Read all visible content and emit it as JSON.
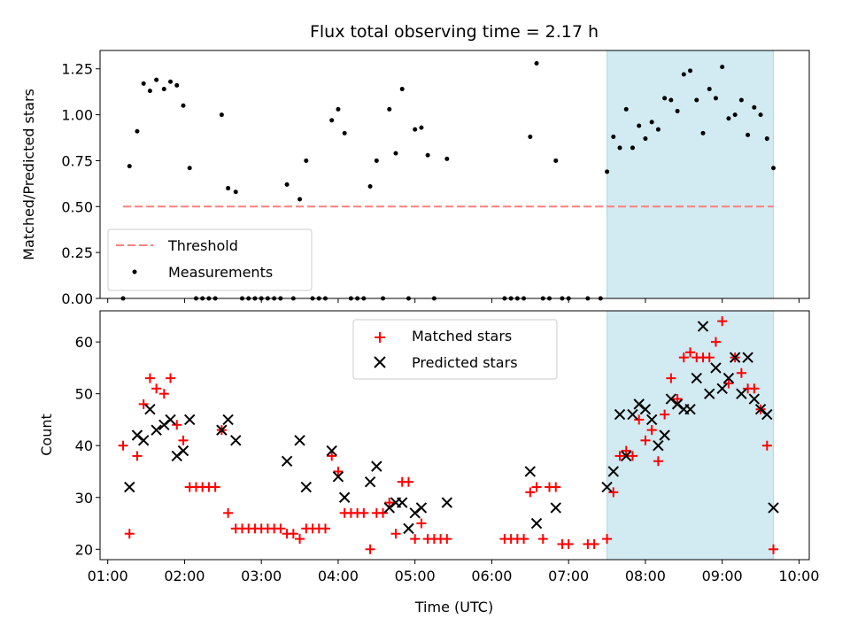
{
  "chart_data": [
    {
      "type": "scatter",
      "title": "Flux total observing time = 2.17 h",
      "xlabel": "",
      "ylabel": "Matched/Predicted stars",
      "xlim": [
        "00:54",
        "10:08"
      ],
      "ylim": [
        0,
        1.35
      ],
      "yticks": [
        "0.00",
        "0.25",
        "0.50",
        "0.75",
        "1.00",
        "1.25"
      ],
      "shaded_region": {
        "x": [
          "07:30",
          "09:40"
        ],
        "color": "#add8e6"
      },
      "threshold": {
        "name": "Threshold",
        "y": 0.5,
        "x": [
          "01:12",
          "09:40"
        ],
        "color": "#ff7f7f",
        "style": "dashed"
      },
      "legend": {
        "position": "lower-left",
        "entries": [
          "Threshold",
          "Measurements"
        ]
      },
      "series": [
        {
          "name": "Measurements",
          "color": "#000000",
          "points": [
            [
              "01:12",
              0
            ],
            [
              "01:17",
              0.72
            ],
            [
              "01:23",
              0.91
            ],
            [
              "01:28",
              1.17
            ],
            [
              "01:33",
              1.13
            ],
            [
              "01:38",
              1.19
            ],
            [
              "01:44",
              1.14
            ],
            [
              "01:49",
              1.18
            ],
            [
              "01:54",
              1.16
            ],
            [
              "01:59",
              1.05
            ],
            [
              "02:04",
              0.71
            ],
            [
              "02:09",
              0
            ],
            [
              "02:14",
              0
            ],
            [
              "02:19",
              0
            ],
            [
              "02:24",
              0
            ],
            [
              "02:29",
              1.0
            ],
            [
              "02:34",
              0.6
            ],
            [
              "02:40",
              0.58
            ],
            [
              "02:45",
              0
            ],
            [
              "02:50",
              0
            ],
            [
              "02:55",
              0
            ],
            [
              "03:00",
              0
            ],
            [
              "03:05",
              0
            ],
            [
              "03:10",
              0
            ],
            [
              "03:15",
              0
            ],
            [
              "03:20",
              0.62
            ],
            [
              "03:25",
              0
            ],
            [
              "03:30",
              0.54
            ],
            [
              "03:35",
              0.75
            ],
            [
              "03:40",
              0
            ],
            [
              "03:45",
              0
            ],
            [
              "03:50",
              0
            ],
            [
              "03:55",
              0.97
            ],
            [
              "04:00",
              1.03
            ],
            [
              "04:05",
              0.9
            ],
            [
              "04:10",
              0
            ],
            [
              "04:15",
              0
            ],
            [
              "04:20",
              0
            ],
            [
              "04:25",
              0.61
            ],
            [
              "04:30",
              0.75
            ],
            [
              "04:35",
              0
            ],
            [
              "04:40",
              1.03
            ],
            [
              "04:45",
              0.79
            ],
            [
              "04:50",
              1.14
            ],
            [
              "04:55",
              0
            ],
            [
              "05:00",
              0.92
            ],
            [
              "05:05",
              0.93
            ],
            [
              "05:10",
              0.78
            ],
            [
              "05:15",
              0
            ],
            [
              "05:25",
              0.76
            ],
            [
              "06:10",
              0
            ],
            [
              "06:15",
              0
            ],
            [
              "06:20",
              0
            ],
            [
              "06:25",
              0
            ],
            [
              "06:30",
              0.88
            ],
            [
              "06:35",
              1.28
            ],
            [
              "06:40",
              0
            ],
            [
              "06:45",
              0
            ],
            [
              "06:50",
              0.75
            ],
            [
              "06:55",
              0
            ],
            [
              "07:00",
              0
            ],
            [
              "07:15",
              0
            ],
            [
              "07:25",
              0
            ],
            [
              "07:30",
              0.69
            ],
            [
              "07:35",
              0.88
            ],
            [
              "07:40",
              0.82
            ],
            [
              "07:45",
              1.03
            ],
            [
              "07:50",
              0.82
            ],
            [
              "07:55",
              0.94
            ],
            [
              "08:00",
              0.87
            ],
            [
              "08:05",
              0.96
            ],
            [
              "08:10",
              0.92
            ],
            [
              "08:15",
              1.09
            ],
            [
              "08:20",
              1.08
            ],
            [
              "08:25",
              1.02
            ],
            [
              "08:30",
              1.22
            ],
            [
              "08:35",
              1.24
            ],
            [
              "08:40",
              1.08
            ],
            [
              "08:45",
              0.9
            ],
            [
              "08:50",
              1.14
            ],
            [
              "08:55",
              1.09
            ],
            [
              "09:00",
              1.26
            ],
            [
              "09:05",
              0.98
            ],
            [
              "09:10",
              1.0
            ],
            [
              "09:15",
              1.08
            ],
            [
              "09:20",
              0.89
            ],
            [
              "09:25",
              1.04
            ],
            [
              "09:30",
              1.0
            ],
            [
              "09:35",
              0.87
            ],
            [
              "09:40",
              0.71
            ]
          ]
        }
      ]
    },
    {
      "type": "scatter",
      "title": "",
      "xlabel": "Time (UTC)",
      "ylabel": "Count",
      "xlim": [
        "00:54",
        "10:08"
      ],
      "ylim": [
        18,
        66
      ],
      "xticks": [
        "01:00",
        "02:00",
        "03:00",
        "04:00",
        "05:00",
        "06:00",
        "07:00",
        "08:00",
        "09:00",
        "10:00"
      ],
      "yticks": [
        "20",
        "30",
        "40",
        "50",
        "60"
      ],
      "shaded_region": {
        "x": [
          "07:30",
          "09:40"
        ],
        "color": "#add8e6"
      },
      "legend": {
        "position": "upper-center",
        "entries": [
          "Matched stars",
          "Predicted stars"
        ]
      },
      "series": [
        {
          "name": "Matched stars",
          "marker": "+",
          "color": "#ff0000",
          "points": [
            [
              "01:12",
              40
            ],
            [
              "01:17",
              23
            ],
            [
              "01:23",
              38
            ],
            [
              "01:28",
              48
            ],
            [
              "01:33",
              53
            ],
            [
              "01:38",
              51
            ],
            [
              "01:44",
              50
            ],
            [
              "01:49",
              53
            ],
            [
              "01:54",
              44
            ],
            [
              "01:59",
              41
            ],
            [
              "02:04",
              32
            ],
            [
              "02:09",
              32
            ],
            [
              "02:14",
              32
            ],
            [
              "02:19",
              32
            ],
            [
              "02:24",
              32
            ],
            [
              "02:29",
              43
            ],
            [
              "02:34",
              27
            ],
            [
              "02:40",
              24
            ],
            [
              "02:45",
              24
            ],
            [
              "02:50",
              24
            ],
            [
              "02:55",
              24
            ],
            [
              "03:00",
              24
            ],
            [
              "03:05",
              24
            ],
            [
              "03:10",
              24
            ],
            [
              "03:15",
              24
            ],
            [
              "03:20",
              23
            ],
            [
              "03:25",
              23
            ],
            [
              "03:30",
              22
            ],
            [
              "03:35",
              24
            ],
            [
              "03:40",
              24
            ],
            [
              "03:45",
              24
            ],
            [
              "03:50",
              24
            ],
            [
              "03:55",
              38
            ],
            [
              "04:00",
              35
            ],
            [
              "04:05",
              27
            ],
            [
              "04:10",
              27
            ],
            [
              "04:15",
              27
            ],
            [
              "04:20",
              27
            ],
            [
              "04:25",
              20
            ],
            [
              "04:30",
              27
            ],
            [
              "04:35",
              27
            ],
            [
              "04:40",
              29
            ],
            [
              "04:45",
              23
            ],
            [
              "04:50",
              33
            ],
            [
              "04:55",
              33
            ],
            [
              "05:00",
              22
            ],
            [
              "05:05",
              25
            ],
            [
              "05:10",
              22
            ],
            [
              "05:15",
              22
            ],
            [
              "05:20",
              22
            ],
            [
              "05:25",
              22
            ],
            [
              "06:10",
              22
            ],
            [
              "06:15",
              22
            ],
            [
              "06:20",
              22
            ],
            [
              "06:25",
              22
            ],
            [
              "06:30",
              31
            ],
            [
              "06:35",
              32
            ],
            [
              "06:40",
              22
            ],
            [
              "06:45",
              32
            ],
            [
              "06:50",
              32
            ],
            [
              "06:55",
              21
            ],
            [
              "07:00",
              21
            ],
            [
              "07:15",
              21
            ],
            [
              "07:20",
              21
            ],
            [
              "07:30",
              22
            ],
            [
              "07:35",
              31
            ],
            [
              "07:40",
              38
            ],
            [
              "07:45",
              39
            ],
            [
              "07:50",
              38
            ],
            [
              "07:55",
              45
            ],
            [
              "08:00",
              41
            ],
            [
              "08:05",
              43
            ],
            [
              "08:10",
              37
            ],
            [
              "08:15",
              46
            ],
            [
              "08:20",
              53
            ],
            [
              "08:25",
              49
            ],
            [
              "08:30",
              57
            ],
            [
              "08:35",
              58
            ],
            [
              "08:40",
              57
            ],
            [
              "08:45",
              57
            ],
            [
              "08:50",
              57
            ],
            [
              "08:55",
              60
            ],
            [
              "09:00",
              64
            ],
            [
              "09:05",
              52
            ],
            [
              "09:10",
              57
            ],
            [
              "09:15",
              54
            ],
            [
              "09:20",
              51
            ],
            [
              "09:25",
              51
            ],
            [
              "09:30",
              47
            ],
            [
              "09:35",
              40
            ],
            [
              "09:40",
              20
            ]
          ]
        },
        {
          "name": "Predicted stars",
          "marker": "x",
          "color": "#000000",
          "points": [
            [
              "01:17",
              32
            ],
            [
              "01:23",
              42
            ],
            [
              "01:28",
              41
            ],
            [
              "01:33",
              47
            ],
            [
              "01:38",
              43
            ],
            [
              "01:44",
              44
            ],
            [
              "01:49",
              45
            ],
            [
              "01:54",
              38
            ],
            [
              "01:59",
              39
            ],
            [
              "02:04",
              45
            ],
            [
              "02:29",
              43
            ],
            [
              "02:34",
              45
            ],
            [
              "02:40",
              41
            ],
            [
              "03:20",
              37
            ],
            [
              "03:30",
              41
            ],
            [
              "03:35",
              32
            ],
            [
              "03:55",
              39
            ],
            [
              "04:00",
              34
            ],
            [
              "04:05",
              30
            ],
            [
              "04:25",
              33
            ],
            [
              "04:30",
              36
            ],
            [
              "04:40",
              28
            ],
            [
              "04:45",
              29
            ],
            [
              "04:50",
              29
            ],
            [
              "04:55",
              24
            ],
            [
              "05:00",
              27
            ],
            [
              "05:05",
              28
            ],
            [
              "05:25",
              29
            ],
            [
              "06:30",
              35
            ],
            [
              "06:35",
              25
            ],
            [
              "06:50",
              28
            ],
            [
              "07:30",
              32
            ],
            [
              "07:35",
              35
            ],
            [
              "07:40",
              46
            ],
            [
              "07:45",
              38
            ],
            [
              "07:50",
              46
            ],
            [
              "07:55",
              48
            ],
            [
              "08:00",
              47
            ],
            [
              "08:05",
              45
            ],
            [
              "08:10",
              40
            ],
            [
              "08:15",
              42
            ],
            [
              "08:20",
              49
            ],
            [
              "08:25",
              48
            ],
            [
              "08:30",
              47
            ],
            [
              "08:35",
              47
            ],
            [
              "08:40",
              53
            ],
            [
              "08:45",
              63
            ],
            [
              "08:50",
              50
            ],
            [
              "08:55",
              55
            ],
            [
              "09:00",
              51
            ],
            [
              "09:05",
              53
            ],
            [
              "09:10",
              57
            ],
            [
              "09:15",
              50
            ],
            [
              "09:20",
              57
            ],
            [
              "09:25",
              49
            ],
            [
              "09:30",
              47
            ],
            [
              "09:35",
              46
            ],
            [
              "09:40",
              28
            ]
          ]
        }
      ]
    }
  ]
}
